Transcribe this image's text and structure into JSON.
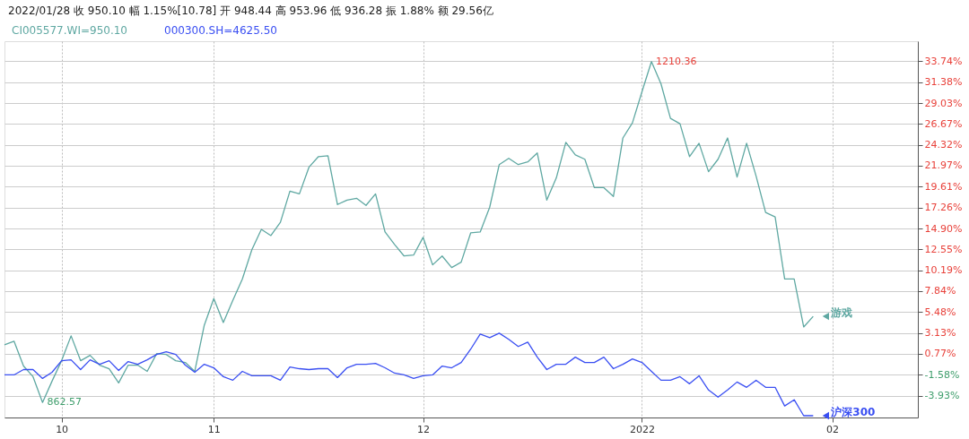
{
  "chart_data": {
    "type": "line",
    "title": "2022/01/28 收 950.10 幅 1.15%[10.78] 开 948.44 高 953.96 低 936.28 振 1.88% 额 29.56亿",
    "categories": [
      null,
      null,
      null,
      null,
      null,
      null,
      "10",
      null,
      null,
      null,
      null,
      null,
      null,
      null,
      null,
      null,
      null,
      null,
      null,
      null,
      null,
      null,
      "11",
      null,
      null,
      null,
      null,
      null,
      null,
      null,
      null,
      null,
      null,
      null,
      null,
      null,
      null,
      null,
      null,
      null,
      null,
      null,
      null,
      null,
      "12",
      null,
      null,
      null,
      null,
      null,
      null,
      null,
      null,
      null,
      null,
      null,
      null,
      null,
      null,
      null,
      null,
      null,
      null,
      null,
      null,
      null,
      null,
      "2022",
      null,
      null,
      null,
      null,
      null,
      null,
      null,
      null,
      null,
      null,
      null,
      null,
      null,
      null,
      null,
      null,
      null,
      null,
      null,
      "02",
      null,
      null,
      null,
      null,
      null,
      null,
      null,
      null,
      null
    ],
    "series": [
      {
        "name": "游戏",
        "color": "#5fa8a2",
        "values": [
          1.8,
          2.2,
          -0.6,
          -1.8,
          -4.7,
          -2.3,
          0.0,
          2.8,
          0.0,
          0.6,
          -0.5,
          -0.9,
          -2.5,
          -0.5,
          -0.5,
          -1.2,
          0.8,
          0.7,
          0.0,
          -0.2,
          -1.2,
          4.0,
          7.0,
          4.3,
          6.8,
          9.2,
          12.5,
          14.8,
          14.1,
          15.6,
          19.1,
          18.8,
          21.8,
          23.0,
          23.1,
          17.6,
          18.1,
          18.3,
          17.5,
          18.8,
          14.5,
          13.1,
          11.8,
          11.9,
          13.9,
          10.8,
          11.8,
          10.5,
          11.1,
          14.4,
          14.5,
          17.3,
          22.1,
          22.8,
          22.1,
          22.4,
          23.4,
          18.1,
          20.6,
          24.6,
          23.2,
          22.7,
          19.5,
          19.5,
          18.5,
          25.1,
          26.8,
          30.3,
          33.7,
          31.2,
          27.3,
          26.7,
          23.0,
          24.5,
          21.3,
          22.7,
          25.1,
          20.7,
          24.5,
          20.8,
          16.7,
          16.2,
          9.2,
          9.2,
          3.8,
          5.0,
          null,
          null,
          null,
          null,
          null,
          null,
          null,
          null,
          null,
          null,
          null
        ]
      },
      {
        "name": "沪深300",
        "color": "#3a4ff2",
        "values": [
          -1.6,
          -1.6,
          -1.0,
          -1.0,
          -2.0,
          -1.3,
          0.0,
          0.1,
          -1.0,
          0.1,
          -0.4,
          0.0,
          -1.1,
          -0.1,
          -0.4,
          0.1,
          0.7,
          1.0,
          0.7,
          -0.5,
          -1.3,
          -0.4,
          -0.8,
          -1.8,
          -2.2,
          -1.2,
          -1.7,
          -1.7,
          -1.7,
          -2.2,
          -0.7,
          -0.9,
          -1.0,
          -0.9,
          -0.9,
          -1.9,
          -0.8,
          -0.4,
          -0.4,
          -0.3,
          -0.8,
          -1.4,
          -1.6,
          -2.0,
          -1.7,
          -1.6,
          -0.6,
          -0.8,
          -0.2,
          1.3,
          3.0,
          2.6,
          3.1,
          2.4,
          1.6,
          2.1,
          0.4,
          -1.0,
          -0.4,
          -0.4,
          0.4,
          -0.2,
          -0.2,
          0.4,
          -0.9,
          -0.4,
          0.2,
          -0.2,
          -1.2,
          -2.2,
          -2.2,
          -1.8,
          -2.6,
          -1.7,
          -3.3,
          -4.1,
          -3.3,
          -2.4,
          -3.0,
          -2.2,
          -3.0,
          -3.0,
          -5.1,
          -4.4,
          -6.2,
          -6.2,
          null,
          null,
          null,
          null,
          null,
          null,
          null,
          null,
          null,
          null,
          null
        ]
      }
    ],
    "ylim": [
      -6.4,
      36.0
    ],
    "yticks": [
      {
        "value": 33.74,
        "label": "33.74%"
      },
      {
        "value": 31.38,
        "label": "31.38%"
      },
      {
        "value": 29.03,
        "label": "29.03%"
      },
      {
        "value": 26.67,
        "label": "26.67%"
      },
      {
        "value": 24.32,
        "label": "24.32%"
      },
      {
        "value": 21.97,
        "label": "21.97%"
      },
      {
        "value": 19.61,
        "label": "19.61%"
      },
      {
        "value": 17.26,
        "label": "17.26%"
      },
      {
        "value": 14.9,
        "label": "14.90%"
      },
      {
        "value": 12.55,
        "label": "12.55%"
      },
      {
        "value": 10.19,
        "label": "10.19%"
      },
      {
        "value": 7.84,
        "label": "7.84%"
      },
      {
        "value": 5.48,
        "label": "5.48%"
      },
      {
        "value": 3.13,
        "label": "3.13%"
      },
      {
        "value": 0.77,
        "label": "0.77%"
      },
      {
        "value": -1.58,
        "label": "-1.58%"
      },
      {
        "value": -3.93,
        "label": "-3.93%"
      }
    ],
    "annotations": [
      "862.57",
      "1210.36",
      "CI005577.WI=950.10",
      "000300.SH=4625.50"
    ],
    "grid": true,
    "legend": "right"
  }
}
